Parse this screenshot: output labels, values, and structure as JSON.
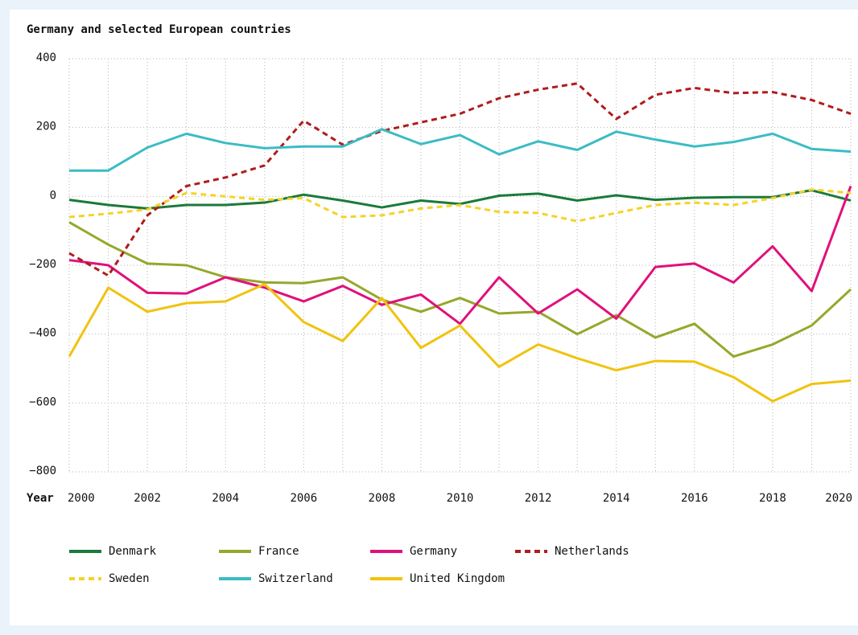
{
  "chart_data": {
    "type": "line",
    "title": "Germany and selected European countries",
    "xlabel": "Year",
    "x": [
      2000,
      2001,
      2002,
      2003,
      2004,
      2005,
      2006,
      2007,
      2008,
      2009,
      2010,
      2011,
      2012,
      2013,
      2014,
      2015,
      2016,
      2017,
      2018,
      2019,
      2020
    ],
    "xlim": [
      2000,
      2020
    ],
    "xticks": [
      2000,
      2002,
      2004,
      2006,
      2008,
      2010,
      2012,
      2014,
      2016,
      2018,
      2020
    ],
    "ylim": [
      -800,
      400
    ],
    "yticks": [
      {
        "value": -800,
        "label": "−800"
      },
      {
        "value": -600,
        "label": "−600"
      },
      {
        "value": -400,
        "label": "−400"
      },
      {
        "value": -200,
        "label": "−200"
      },
      0,
      200,
      400
    ],
    "grid": true,
    "series": [
      {
        "name": "Denmark",
        "color": "#1a7a3a",
        "dashed": false,
        "values": [
          -10,
          -25,
          -35,
          -25,
          -25,
          -18,
          5,
          -12,
          -32,
          -12,
          -22,
          2,
          8,
          -12,
          3,
          -10,
          -4,
          -2,
          -2,
          18,
          -12
        ]
      },
      {
        "name": "France",
        "color": "#97a72c",
        "dashed": false,
        "values": [
          -75,
          -140,
          -195,
          -200,
          -235,
          -250,
          -252,
          -235,
          -300,
          -335,
          -295,
          -340,
          -335,
          -400,
          -345,
          -410,
          -370,
          -465,
          -430,
          -375,
          -270
        ]
      },
      {
        "name": "Germany",
        "color": "#e0117a",
        "dashed": false,
        "values": [
          -185,
          -200,
          -280,
          -282,
          -235,
          -265,
          -305,
          -260,
          -315,
          -285,
          -370,
          -235,
          -340,
          -270,
          -355,
          -205,
          -195,
          -250,
          -145,
          -275,
          30
        ]
      },
      {
        "name": "Netherlands",
        "color": "#b01c1c",
        "dashed": true,
        "values": [
          -165,
          -230,
          -55,
          30,
          55,
          90,
          220,
          150,
          190,
          215,
          240,
          285,
          310,
          328,
          225,
          295,
          315,
          300,
          303,
          280,
          240
        ]
      },
      {
        "name": "Sweden",
        "color": "#f5d327",
        "dashed": true,
        "values": [
          -60,
          -50,
          -38,
          10,
          0,
          -10,
          -5,
          -60,
          -55,
          -35,
          -25,
          -45,
          -48,
          -72,
          -48,
          -25,
          -18,
          -25,
          -5,
          20,
          10
        ]
      },
      {
        "name": "Switzerland",
        "color": "#3bbcc4",
        "dashed": false,
        "values": [
          75,
          75,
          142,
          182,
          155,
          140,
          145,
          145,
          195,
          152,
          178,
          122,
          160,
          135,
          188,
          165,
          145,
          158,
          182,
          138,
          130
        ]
      },
      {
        "name": "United Kingdom",
        "color": "#f0c30f",
        "dashed": false,
        "values": [
          -465,
          -265,
          -335,
          -310,
          -305,
          -255,
          -365,
          -420,
          -295,
          -440,
          -375,
          -495,
          -430,
          -470,
          -505,
          -478,
          -480,
          -525,
          -595,
          -545,
          -535
        ]
      }
    ]
  }
}
